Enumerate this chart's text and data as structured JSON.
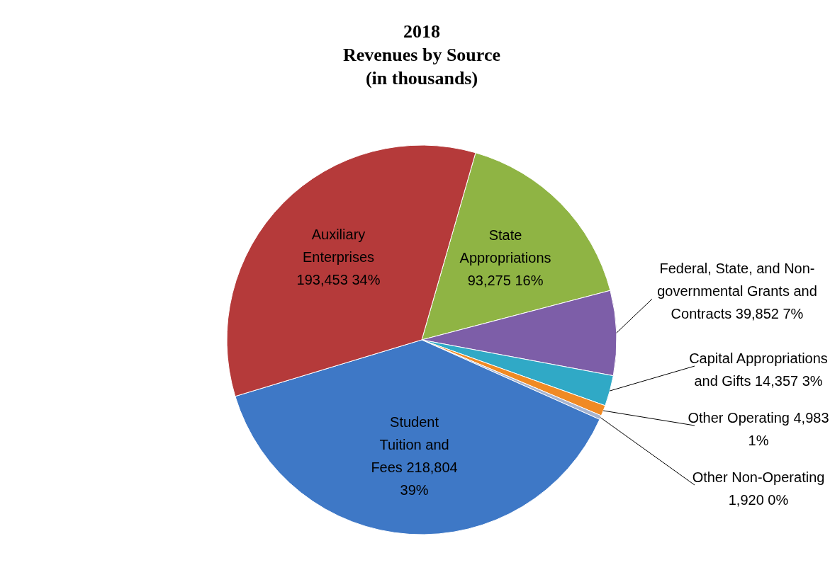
{
  "chart_data": {
    "type": "pie",
    "title": "2018",
    "subtitle": "Revenues by Source",
    "annotations": [
      "(in thousands)"
    ],
    "categories": [
      "State Appropriations",
      "Federal, State, and Non-governmental Grants and Contracts",
      "Capital Appropriations and Gifts",
      "Other Operating",
      "Other Non-Operating",
      "Student Tuition and Fees",
      "Auxiliary Enterprises"
    ],
    "values": [
      93275,
      39852,
      14357,
      4983,
      1920,
      218804,
      193453
    ],
    "value_labels": [
      "93,275  16%",
      "39,852  7%",
      "14,357  3%",
      "4,983  1%",
      "1,920  0%",
      "218,804  39%",
      "193,453  34%"
    ],
    "colors": [
      "#8fb444",
      "#7d5ea8",
      "#30a9c6",
      "#f08a24",
      "#a6b4d0",
      "#3e78c6",
      "#b53a3a"
    ]
  }
}
